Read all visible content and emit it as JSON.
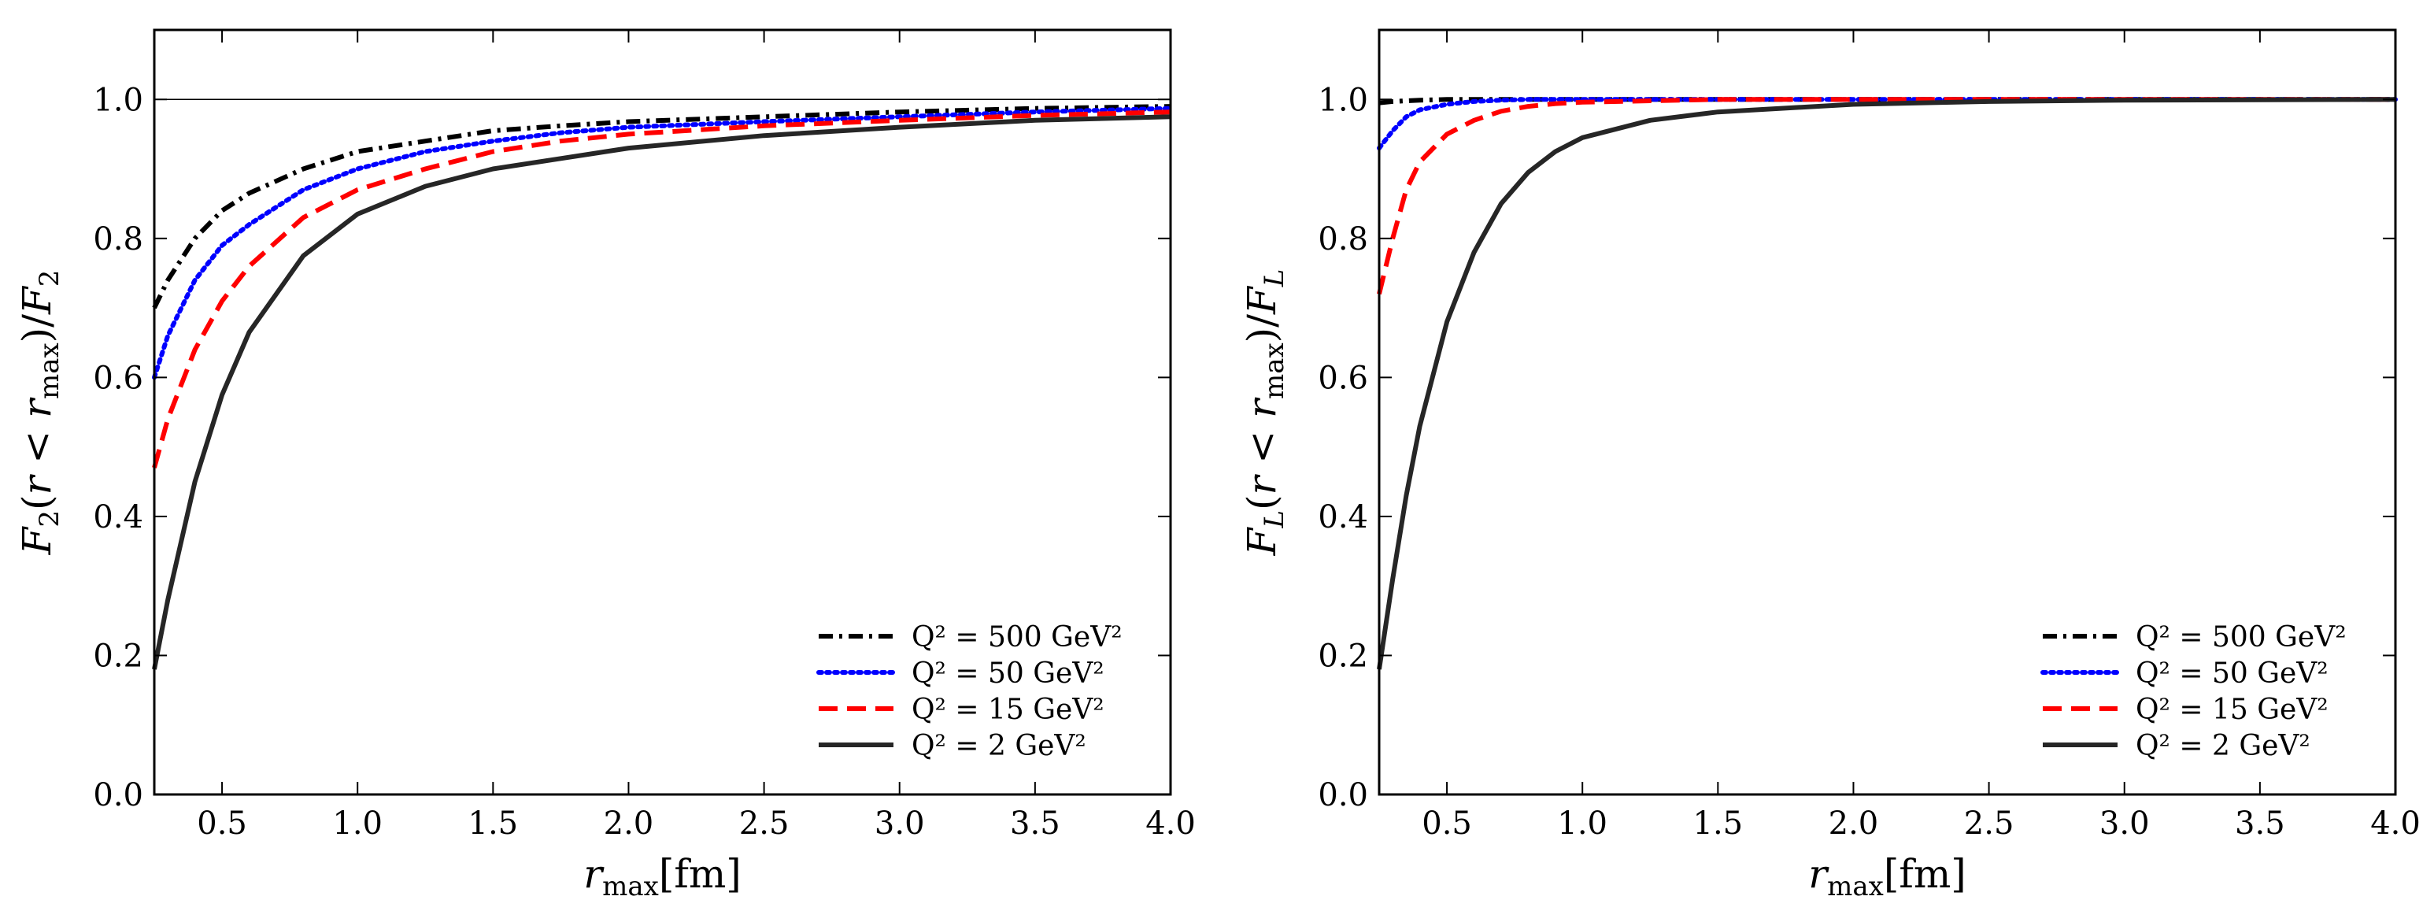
{
  "chart_data": [
    {
      "type": "line",
      "id": "left",
      "xlabel": "r_max[fm]",
      "ylabel": "F_2(r < r_max)/F_2",
      "xlim": [
        0.25,
        4.0
      ],
      "ylim": [
        0.0,
        1.1
      ],
      "x_ticks": [
        "0.5",
        "1.0",
        "1.5",
        "2.0",
        "2.5",
        "3.0",
        "3.5",
        "4.0"
      ],
      "y_ticks": [
        "0.0",
        "0.2",
        "0.4",
        "0.6",
        "0.8",
        "1.0"
      ],
      "reference_line": 1.0,
      "legend_position": "lower-right",
      "x": [
        0.25,
        0.3,
        0.4,
        0.5,
        0.6,
        0.8,
        1.0,
        1.25,
        1.5,
        1.75,
        2.0,
        2.5,
        3.0,
        3.5,
        4.0
      ],
      "series": [
        {
          "name": "Q^2 = 500 GeV^2",
          "label": "Q² = 500 GeV²",
          "color": "#000000",
          "style": "dashdot",
          "values": [
            0.7,
            0.74,
            0.8,
            0.84,
            0.865,
            0.9,
            0.925,
            0.94,
            0.955,
            0.962,
            0.968,
            0.975,
            0.982,
            0.987,
            0.99
          ]
        },
        {
          "name": "Q^2 = 50 GeV^2",
          "label": "Q² = 50 GeV²",
          "color": "#0000ff",
          "style": "dotted",
          "values": [
            0.6,
            0.66,
            0.74,
            0.79,
            0.82,
            0.87,
            0.9,
            0.925,
            0.94,
            0.952,
            0.96,
            0.968,
            0.975,
            0.982,
            0.987
          ]
        },
        {
          "name": "Q^2 = 15 GeV^2",
          "label": "Q² = 15 GeV²",
          "color": "#ff0000",
          "style": "dashed",
          "values": [
            0.47,
            0.54,
            0.64,
            0.71,
            0.76,
            0.83,
            0.87,
            0.9,
            0.925,
            0.94,
            0.95,
            0.962,
            0.97,
            0.977,
            0.982
          ]
        },
        {
          "name": "Q^2 = 2 GeV^2",
          "label": "Q² = 2 GeV²",
          "color": "#262626",
          "style": "solid",
          "values": [
            0.18,
            0.28,
            0.45,
            0.575,
            0.665,
            0.775,
            0.835,
            0.875,
            0.9,
            0.915,
            0.93,
            0.948,
            0.96,
            0.97,
            0.975
          ]
        }
      ]
    },
    {
      "type": "line",
      "id": "right",
      "xlabel": "r_max[fm]",
      "ylabel": "F_L(r < r_max)/F_L",
      "xlim": [
        0.25,
        4.0
      ],
      "ylim": [
        0.0,
        1.1
      ],
      "x_ticks": [
        "0.5",
        "1.0",
        "1.5",
        "2.0",
        "2.5",
        "3.0",
        "3.5",
        "4.0"
      ],
      "y_ticks": [
        "0.0",
        "0.2",
        "0.4",
        "0.6",
        "0.8",
        "1.0"
      ],
      "reference_line": null,
      "legend_position": "lower-right",
      "x": [
        0.25,
        0.3,
        0.35,
        0.4,
        0.5,
        0.6,
        0.7,
        0.8,
        0.9,
        1.0,
        1.25,
        1.5,
        2.0,
        2.5,
        3.0,
        4.0
      ],
      "series": [
        {
          "name": "Q^2 = 500 GeV^2",
          "label": "Q² = 500 GeV²",
          "color": "#000000",
          "style": "dashdot",
          "values": [
            0.995,
            0.997,
            0.998,
            0.999,
            1.0,
            1.0,
            1.0,
            1.0,
            1.0,
            1.0,
            1.0,
            1.0,
            1.0,
            1.0,
            1.0,
            1.0
          ]
        },
        {
          "name": "Q^2 = 50 GeV^2",
          "label": "Q² = 50 GeV²",
          "color": "#0000ff",
          "style": "dotted",
          "values": [
            0.93,
            0.955,
            0.975,
            0.985,
            0.993,
            0.997,
            0.999,
            1.0,
            1.0,
            1.0,
            1.0,
            1.0,
            1.0,
            1.0,
            1.0,
            1.0
          ]
        },
        {
          "name": "Q^2 = 15 GeV^2",
          "label": "Q² = 15 GeV²",
          "color": "#ff0000",
          "style": "dashed",
          "values": [
            0.72,
            0.8,
            0.87,
            0.91,
            0.95,
            0.97,
            0.983,
            0.99,
            0.994,
            0.996,
            0.998,
            1.0,
            1.0,
            1.0,
            1.0,
            1.0
          ]
        },
        {
          "name": "Q^2 = 2 GeV^2",
          "label": "Q² = 2 GeV²",
          "color": "#262626",
          "style": "solid",
          "values": [
            0.18,
            0.31,
            0.43,
            0.53,
            0.68,
            0.78,
            0.85,
            0.895,
            0.925,
            0.945,
            0.97,
            0.982,
            0.993,
            0.997,
            0.999,
            1.0
          ]
        }
      ]
    }
  ]
}
